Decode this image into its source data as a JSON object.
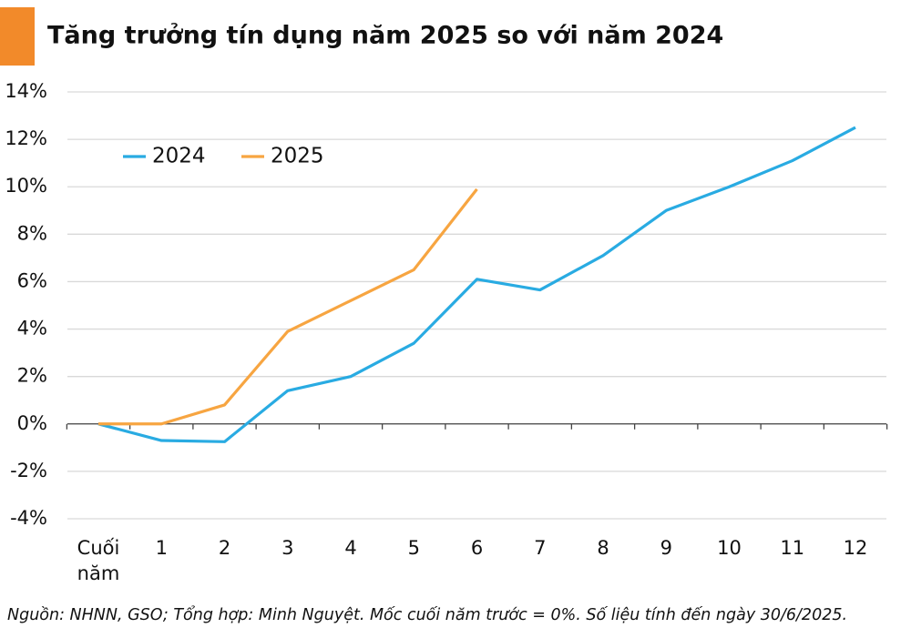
{
  "chart_data": {
    "type": "line",
    "title": "Tăng trưởng tín dụng năm 2025 so với năm 2024",
    "source": "Nguồn: NHNN, GSO; Tổng hợp: Minh Nguyệt. Mốc cuối năm trước = 0%.  Số liệu tính đến ngày 30/6/2025.",
    "categories": [
      "Cuối năm",
      "1",
      "2",
      "3",
      "4",
      "5",
      "6",
      "7",
      "8",
      "9",
      "10",
      "11",
      "12"
    ],
    "series": [
      {
        "name": "2024",
        "color": "#29abe2",
        "values": [
          0,
          -0.7,
          -0.75,
          1.4,
          2.0,
          3.4,
          6.1,
          5.65,
          7.1,
          9.0,
          10.0,
          11.1,
          12.5
        ]
      },
      {
        "name": "2025",
        "color": "#f7a541",
        "values": [
          0,
          0,
          0.8,
          3.9,
          5.2,
          6.5,
          9.9,
          null,
          null,
          null,
          null,
          null,
          null
        ]
      }
    ],
    "ylim": [
      -4,
      14
    ],
    "yticks": [
      {
        "value": -4,
        "label": "-4%"
      },
      {
        "value": -2,
        "label": "-2%"
      },
      {
        "value": 0,
        "label": "0%"
      },
      {
        "value": 2,
        "label": "2%"
      },
      {
        "value": 4,
        "label": "4%"
      },
      {
        "value": 6,
        "label": "6%"
      },
      {
        "value": 8,
        "label": "8%"
      },
      {
        "value": 10,
        "label": "10%"
      },
      {
        "value": 12,
        "label": "12%"
      },
      {
        "value": 14,
        "label": "14%"
      }
    ],
    "grid": true,
    "legend": "top-left"
  }
}
